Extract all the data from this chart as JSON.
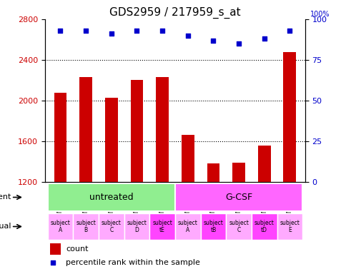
{
  "title": "GDS2959 / 217959_s_at",
  "samples": [
    "GSM178549",
    "GSM178550",
    "GSM178551",
    "GSM178552",
    "GSM178553",
    "GSM178554",
    "GSM178555",
    "GSM178556",
    "GSM178557",
    "GSM178558"
  ],
  "counts": [
    2080,
    2230,
    2030,
    2200,
    2230,
    1660,
    1380,
    1390,
    1560,
    2480
  ],
  "percentile_ranks": [
    93,
    93,
    91,
    93,
    93,
    90,
    87,
    85,
    88,
    93
  ],
  "ylim_left": [
    1200,
    2800
  ],
  "ylim_right": [
    0,
    100
  ],
  "yticks_left": [
    1200,
    1600,
    2000,
    2400,
    2800
  ],
  "yticks_right": [
    0,
    25,
    50,
    75,
    100
  ],
  "agent_groups": [
    {
      "label": "untreated",
      "start": 0,
      "end": 5,
      "color": "#90ee90"
    },
    {
      "label": "G-CSF",
      "start": 5,
      "end": 10,
      "color": "#ff66ff"
    }
  ],
  "individuals": [
    {
      "label": "subject\nA",
      "idx": 0,
      "color": "#ffaaff"
    },
    {
      "label": "subject\nB",
      "idx": 1,
      "color": "#ffaaff"
    },
    {
      "label": "subject\nC",
      "idx": 2,
      "color": "#ffaaff"
    },
    {
      "label": "subject\nD",
      "idx": 3,
      "color": "#ffaaff"
    },
    {
      "label": "subject\ntE",
      "idx": 4,
      "color": "#ff44ff"
    },
    {
      "label": "subject\nA",
      "idx": 5,
      "color": "#ffaaff"
    },
    {
      "label": "subject\ntB",
      "idx": 6,
      "color": "#ff44ff"
    },
    {
      "label": "subject\nC",
      "idx": 7,
      "color": "#ffaaff"
    },
    {
      "label": "subject\ntD",
      "idx": 8,
      "color": "#ff44ff"
    },
    {
      "label": "subject\nE",
      "idx": 9,
      "color": "#ffaaff"
    }
  ],
  "bar_color": "#cc0000",
  "dot_color": "#0000cc",
  "bar_width": 0.5,
  "background_color": "#ffffff",
  "left_axis_color": "#cc0000",
  "right_axis_color": "#0000cc"
}
